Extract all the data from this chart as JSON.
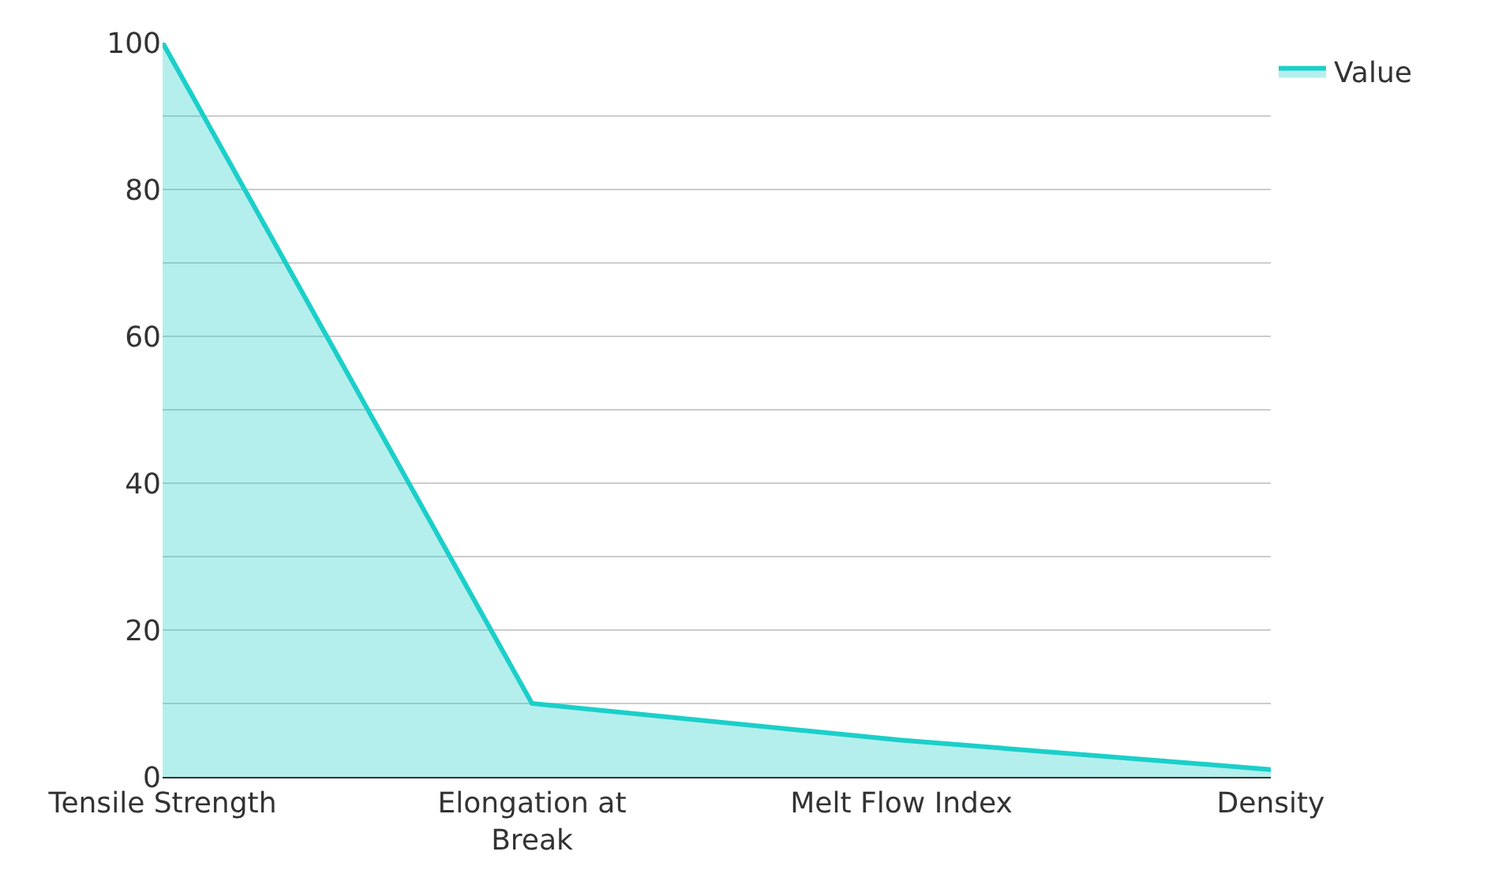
{
  "chart_data": {
    "type": "area",
    "categories": [
      "Tensile Strength",
      "Elongation at Break",
      "Melt Flow Index",
      "Density"
    ],
    "series": [
      {
        "name": "Value",
        "color": "#1ccfc9",
        "values": [
          100,
          10,
          5,
          1
        ]
      }
    ],
    "ylim": [
      0,
      100
    ],
    "yticks": [
      0,
      {
        "value": 10,
        "label": null
      },
      20,
      {
        "value": 30,
        "label": null
      },
      40,
      {
        "value": 50,
        "label": null
      },
      60,
      {
        "value": 70,
        "label": null
      },
      80,
      {
        "value": 90,
        "label": null
      },
      100
    ],
    "grid": "y",
    "legend": "top right"
  }
}
